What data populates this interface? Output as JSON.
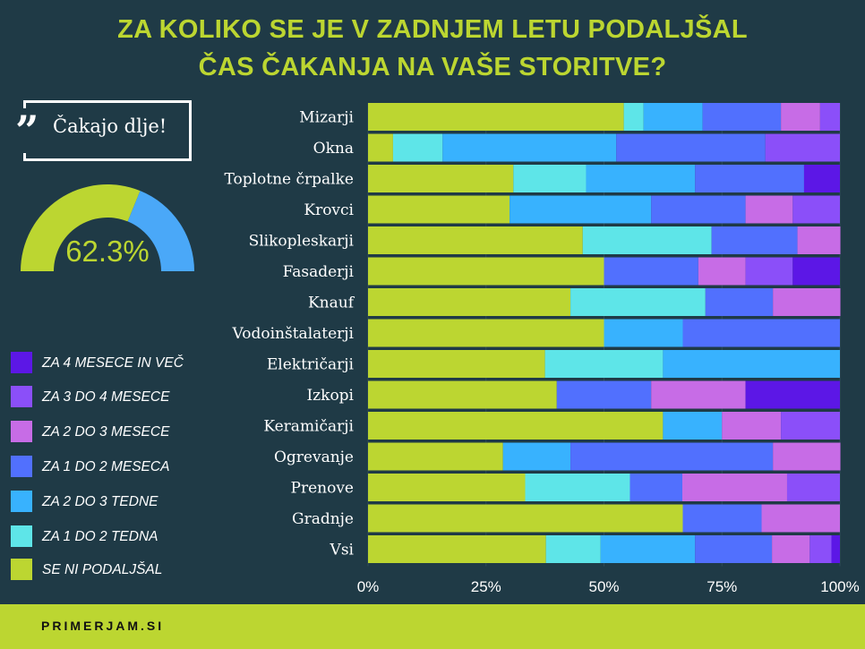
{
  "title_lines": [
    "ZA KOLIKO SE JE V ZADNJEM LETU PODALJŠAL",
    "ČAS ČAKANJA NA VAŠE STORITVE?"
  ],
  "quote": {
    "icon": "quote-icon",
    "text": "Čakajo dlje!"
  },
  "gauge": {
    "value": 62.3,
    "label": "62.3%",
    "fill_color": "#bcd631",
    "rest_color": "#4aa8f8"
  },
  "footer": {
    "brand": "PRIMERJAM.SI"
  },
  "chart_data": {
    "type": "bar",
    "orientation": "horizontal",
    "stacked": "percent",
    "title": "",
    "xlabel": "",
    "ylabel": "",
    "xlim": [
      0,
      100
    ],
    "x_tick_labels": [
      "0%",
      "25%",
      "50%",
      "75%",
      "100%"
    ],
    "grid": true,
    "legend_position": "left",
    "categories": [
      "Mizarji",
      "Okna",
      "Toplotne črpalke",
      "Krovci",
      "Slikopleskarji",
      "Fasaderji",
      "Knauf",
      "Vodoinštalaterji",
      "Električarji",
      "Izkopi",
      "Keramičarji",
      "Ogrevanje",
      "Prenove",
      "Gradnje",
      "Vsi"
    ],
    "series": [
      {
        "name": "SE NI PODALJŠAL",
        "color": "#bcd631",
        "values": [
          54.2,
          5.3,
          30.8,
          30,
          45.5,
          50,
          42.9,
          50,
          37.5,
          40,
          62.5,
          28.6,
          33.3,
          66.7,
          37.7
        ]
      },
      {
        "name": "ZA 1 DO 2 TEDNA",
        "color": "#5ee5e8",
        "values": [
          4.2,
          10.5,
          15.4,
          0,
          27.3,
          0,
          28.6,
          0,
          25,
          0,
          0,
          0,
          22.2,
          0,
          11.6
        ]
      },
      {
        "name": "ZA 2 DO 3 TEDNE",
        "color": "#38b2fe",
        "values": [
          12.5,
          36.8,
          23.1,
          30,
          0,
          0,
          0,
          16.7,
          37.5,
          0,
          12.5,
          14.3,
          0,
          0,
          20
        ]
      },
      {
        "name": "ZA 1 DO 2 MESECA",
        "color": "#5170fe",
        "values": [
          16.6,
          31.6,
          23.1,
          20,
          18.2,
          20,
          14.3,
          33.3,
          0,
          20,
          0,
          42.9,
          11.1,
          16.7,
          16.3
        ]
      },
      {
        "name": "ZA 2 DO 3 MESECE",
        "color": "#c76ce6",
        "values": [
          8.3,
          0,
          0,
          10,
          9.1,
          10,
          14.3,
          0,
          0,
          20,
          12.5,
          14.3,
          22.2,
          16.6,
          8
        ]
      },
      {
        "name": "ZA 3 DO 4 MESECE",
        "color": "#8b4ff9",
        "values": [
          4.2,
          15.8,
          0,
          10,
          0,
          10,
          0,
          0,
          0,
          0,
          12.5,
          0,
          11.2,
          0,
          4.6
        ]
      },
      {
        "name": "ZA 4 MESECE IN VEČ",
        "color": "#5c17e6",
        "values": [
          0,
          0,
          7.6,
          0,
          0,
          10,
          0,
          0,
          0,
          20,
          0,
          0,
          0,
          0,
          1.8
        ]
      }
    ]
  }
}
